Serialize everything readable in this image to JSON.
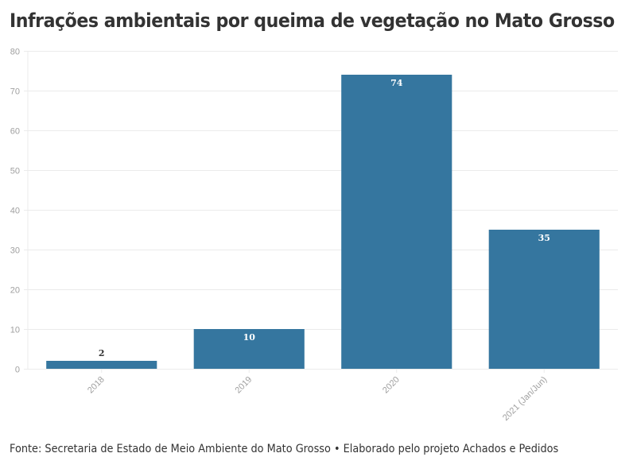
{
  "chart_data": {
    "type": "bar",
    "title": "Infrações ambientais por queima de vegetação no Mato Grosso",
    "categories": [
      "2018",
      "2019",
      "2020",
      "2021 (Jan/Jun)"
    ],
    "values": [
      2,
      10,
      74,
      35
    ],
    "data_labels": [
      "2",
      "10",
      "74",
      "35"
    ],
    "xlabel": "",
    "ylabel": "",
    "ylim": [
      0,
      80
    ],
    "yticks": [
      0,
      10,
      20,
      30,
      40,
      50,
      60,
      70,
      80
    ],
    "grid": true,
    "legend": "none",
    "bar_color": "#35769f",
    "footer": "Fonte: Secretaria de Estado de Meio Ambiente do Mato Grosso • Elaborado pelo projeto Achados e Pedidos"
  }
}
